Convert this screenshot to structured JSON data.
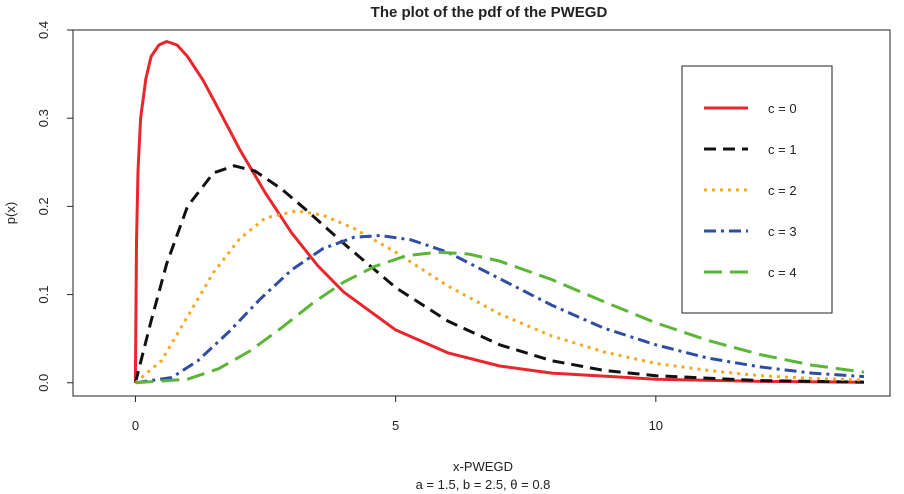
{
  "chart_data": {
    "type": "line",
    "title": "The plot of the pdf of the PWEGD",
    "xlabel": "x-PWEGD",
    "subtitle": "a = 1.5, b = 2.5, θ = 0.8",
    "ylabel": "p(x)",
    "xlim": [
      -1.2,
      14.5
    ],
    "ylim": [
      -0.015,
      0.4
    ],
    "xticks": [
      0,
      5,
      10
    ],
    "yticks": [
      0.0,
      0.1,
      0.2,
      0.3,
      0.4
    ],
    "xtick_labels": [
      "0",
      "5",
      "10"
    ],
    "ytick_labels": [
      "0.0",
      "0.1",
      "0.2",
      "0.3",
      "0.4"
    ],
    "grid": false,
    "legend_position": "top-right",
    "series": [
      {
        "name": "c = 0",
        "color": "#e8262c",
        "dash": "solid",
        "x": [
          0,
          0.02,
          0.05,
          0.1,
          0.2,
          0.3,
          0.45,
          0.6,
          0.8,
          1.0,
          1.3,
          1.6,
          2.0,
          2.5,
          3.0,
          3.5,
          4.0,
          5.0,
          6.0,
          7.0,
          8.0,
          10.0,
          12.0,
          14.0
        ],
        "y": [
          0,
          0.16,
          0.24,
          0.3,
          0.345,
          0.37,
          0.383,
          0.387,
          0.383,
          0.37,
          0.343,
          0.31,
          0.265,
          0.215,
          0.17,
          0.133,
          0.103,
          0.06,
          0.034,
          0.019,
          0.011,
          0.004,
          0.0015,
          0.0005
        ]
      },
      {
        "name": "c = 1",
        "color": "#111111",
        "dash": "dashed",
        "x": [
          0,
          0.3,
          0.6,
          1.0,
          1.5,
          1.9,
          2.3,
          2.8,
          3.3,
          4.0,
          5.0,
          6.0,
          7.0,
          8.0,
          9.0,
          10.0,
          12.0,
          14.0
        ],
        "y": [
          0,
          0.07,
          0.135,
          0.2,
          0.238,
          0.246,
          0.24,
          0.22,
          0.195,
          0.158,
          0.108,
          0.07,
          0.043,
          0.025,
          0.014,
          0.008,
          0.0025,
          0.0008
        ]
      },
      {
        "name": "c = 2",
        "color": "#f5a81f",
        "dash": "dotted",
        "x": [
          0,
          0.5,
          1.0,
          1.5,
          2.0,
          2.5,
          3.1,
          3.6,
          4.2,
          5.0,
          6.0,
          7.0,
          8.0,
          9.0,
          10.0,
          11.0,
          12.0,
          13.0,
          14.0
        ],
        "y": [
          0,
          0.025,
          0.075,
          0.125,
          0.163,
          0.187,
          0.195,
          0.19,
          0.175,
          0.148,
          0.11,
          0.078,
          0.053,
          0.035,
          0.022,
          0.014,
          0.008,
          0.005,
          0.003
        ]
      },
      {
        "name": "c = 3",
        "color": "#2f4da1",
        "dash": "dashdot",
        "x": [
          0,
          0.7,
          1.2,
          1.8,
          2.4,
          3.0,
          3.6,
          4.2,
          4.7,
          5.3,
          6.0,
          7.0,
          8.0,
          9.0,
          10.0,
          11.0,
          12.0,
          13.0,
          14.0
        ],
        "y": [
          0,
          0.006,
          0.025,
          0.058,
          0.095,
          0.128,
          0.152,
          0.165,
          0.167,
          0.162,
          0.148,
          0.118,
          0.088,
          0.062,
          0.043,
          0.028,
          0.018,
          0.011,
          0.007
        ]
      },
      {
        "name": "c = 4",
        "color": "#5bb536",
        "dash": "longdash",
        "x": [
          0,
          1.0,
          1.6,
          2.2,
          2.8,
          3.4,
          4.0,
          4.6,
          5.2,
          5.8,
          6.4,
          7.0,
          8.0,
          9.0,
          10.0,
          11.0,
          12.0,
          13.0,
          14.0
        ],
        "y": [
          0,
          0.004,
          0.016,
          0.036,
          0.062,
          0.09,
          0.114,
          0.132,
          0.144,
          0.148,
          0.146,
          0.138,
          0.117,
          0.092,
          0.068,
          0.048,
          0.032,
          0.02,
          0.012
        ]
      }
    ]
  }
}
